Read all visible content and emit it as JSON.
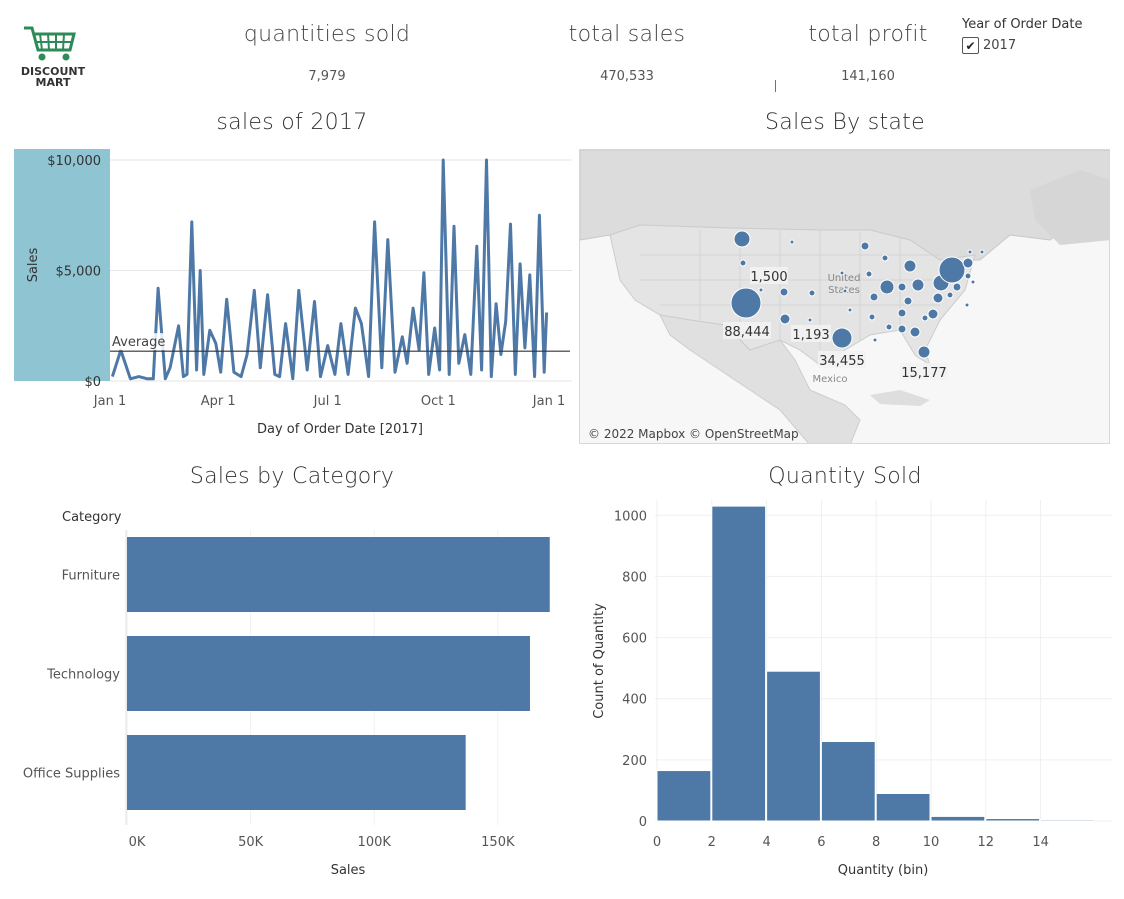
{
  "logo": {
    "line1": "DISCOUNT",
    "line2": "MART"
  },
  "kpis": [
    {
      "title": "quantities sold",
      "value": "7,979"
    },
    {
      "title": "total sales",
      "value": "470,533"
    },
    {
      "title": "total profit",
      "value": "141,160"
    }
  ],
  "filter": {
    "title": "Year of Order Date",
    "option": "2017",
    "checked": true
  },
  "titles": {
    "line": "sales of 2017",
    "map": "Sales By state",
    "category": "Sales by Category",
    "histogram": "Quantity Sold"
  },
  "map": {
    "attribution": "© 2022 Mapbox © OpenStreetMap",
    "country_label_us_1": "United",
    "country_label_us_2": "States",
    "country_label_mexico": "Mexico",
    "labels": [
      "1,500",
      "88,444",
      "1,193",
      "34,455",
      "15,177"
    ]
  },
  "chart_data": [
    {
      "type": "line",
      "title": "sales of 2017",
      "xlabel": "Day of Order Date [2017]",
      "ylabel": "Sales",
      "y_ticks": [
        "$0",
        "$5,000",
        "$10,000"
      ],
      "x_ticks": [
        "Jan 1",
        "Apr 1",
        "Jul 1",
        "Oct 1",
        "Jan 1"
      ],
      "ylim": [
        0,
        10500
      ],
      "reference_line": {
        "label": "Average",
        "value": 1350
      },
      "x": [
        "2017-01-03",
        "2017-01-10",
        "2017-01-18",
        "2017-01-25",
        "2017-02-01",
        "2017-02-06",
        "2017-02-10",
        "2017-02-16",
        "2017-02-20",
        "2017-02-27",
        "2017-03-03",
        "2017-03-06",
        "2017-03-10",
        "2017-03-14",
        "2017-03-17",
        "2017-03-20",
        "2017-03-25",
        "2017-03-30",
        "2017-04-03",
        "2017-04-08",
        "2017-04-14",
        "2017-04-20",
        "2017-04-25",
        "2017-05-01",
        "2017-05-06",
        "2017-05-12",
        "2017-05-18",
        "2017-05-22",
        "2017-05-27",
        "2017-06-02",
        "2017-06-07",
        "2017-06-14",
        "2017-06-20",
        "2017-06-25",
        "2017-07-01",
        "2017-07-07",
        "2017-07-12",
        "2017-07-18",
        "2017-07-24",
        "2017-07-29",
        "2017-08-04",
        "2017-08-09",
        "2017-08-15",
        "2017-08-20",
        "2017-08-26",
        "2017-09-01",
        "2017-09-05",
        "2017-09-10",
        "2017-09-15",
        "2017-09-19",
        "2017-09-23",
        "2017-09-28",
        "2017-10-02",
        "2017-10-05",
        "2017-10-10",
        "2017-10-14",
        "2017-10-18",
        "2017-10-23",
        "2017-10-28",
        "2017-11-02",
        "2017-11-06",
        "2017-11-10",
        "2017-11-14",
        "2017-11-18",
        "2017-11-22",
        "2017-11-26",
        "2017-11-30",
        "2017-12-04",
        "2017-12-08",
        "2017-12-12",
        "2017-12-16",
        "2017-12-20",
        "2017-12-24",
        "2017-12-28",
        "2017-12-30"
      ],
      "values": [
        200,
        1400,
        100,
        200,
        100,
        100,
        4200,
        100,
        600,
        2500,
        200,
        300,
        7200,
        500,
        5000,
        300,
        2300,
        1700,
        400,
        3700,
        400,
        200,
        1200,
        4100,
        600,
        3900,
        300,
        200,
        2600,
        100,
        4100,
        500,
        3600,
        200,
        1600,
        300,
        2600,
        300,
        3300,
        2600,
        200,
        7200,
        600,
        6400,
        400,
        2000,
        800,
        3300,
        1400,
        4900,
        300,
        2400,
        500,
        10000,
        300,
        7000,
        800,
        2100,
        300,
        6100,
        500,
        10000,
        200,
        3500,
        1200,
        2700,
        7100,
        300,
        5300,
        1500,
        4800,
        200,
        7500,
        400,
        3100
      ]
    },
    {
      "type": "bar",
      "title": "Sales by Category",
      "orientation": "horizontal",
      "category_header": "Category",
      "categories": [
        "Furniture",
        "Technology",
        "Office Supplies"
      ],
      "values": [
        171000,
        163000,
        137000
      ],
      "xlabel": "Sales",
      "x_ticks": [
        "0K",
        "50K",
        "100K",
        "150K"
      ],
      "xlim": [
        0,
        180000
      ]
    },
    {
      "type": "bar",
      "title": "Quantity Sold",
      "subtype": "histogram",
      "xlabel": "Quantity (bin)",
      "ylabel": "Count of Quantity",
      "bin_starts": [
        0,
        2,
        4,
        6,
        8,
        10,
        12,
        14
      ],
      "bin_width": 2,
      "values": [
        165,
        1030,
        490,
        260,
        90,
        15,
        8,
        4
      ],
      "x_ticks": [
        "0",
        "2",
        "4",
        "6",
        "8",
        "10",
        "12",
        "14"
      ],
      "y_ticks": [
        "0",
        "200",
        "400",
        "600",
        "800",
        "1000"
      ],
      "ylim": [
        0,
        1050
      ]
    }
  ],
  "colors": {
    "bar": "#4e79a7",
    "line": "#4e79a7",
    "highlight_axis": "#8fc4d3",
    "logo_green": "#2e8b57"
  }
}
